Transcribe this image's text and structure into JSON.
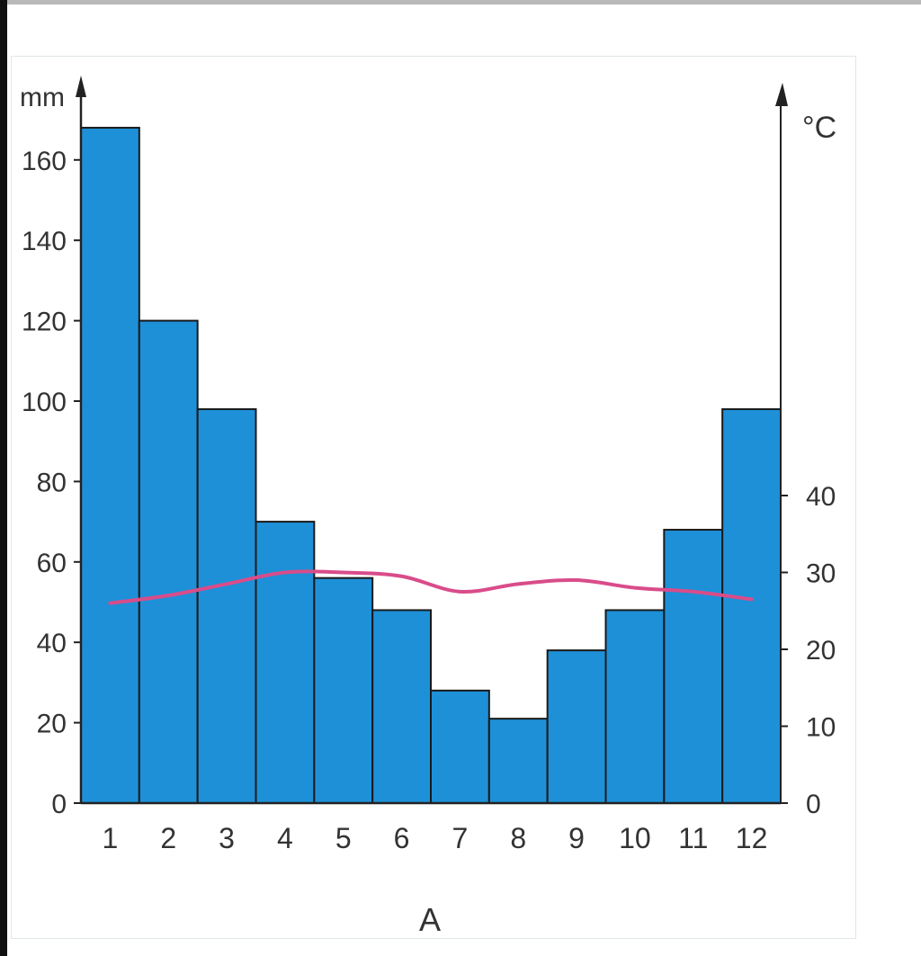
{
  "chart_data": {
    "type": "bar",
    "title": "",
    "xlabel": "A",
    "categories": [
      "1",
      "2",
      "3",
      "4",
      "5",
      "6",
      "7",
      "8",
      "9",
      "10",
      "11",
      "12"
    ],
    "series": [
      {
        "type": "bar",
        "axis": "left",
        "values": [
          168,
          120,
          98,
          70,
          56,
          48,
          28,
          21,
          38,
          48,
          68,
          98
        ]
      },
      {
        "type": "line",
        "axis": "right",
        "values": [
          26,
          27,
          28.5,
          30,
          30,
          29.5,
          27.5,
          28.5,
          29,
          28,
          27.5,
          26.5
        ]
      }
    ],
    "y_left": {
      "label": "mm",
      "ylim": [
        0,
        170
      ],
      "ticks": [
        "0",
        "20",
        "40",
        "60",
        "80",
        "100",
        "120",
        "140",
        "160"
      ]
    },
    "y_right": {
      "label": "°C",
      "ylim": [
        0,
        88.5
      ],
      "ticks": [
        "0",
        "10",
        "20",
        "30",
        "40"
      ]
    },
    "colors": {
      "bar": "#1e90d8",
      "bar_edge": "#1a1a1a",
      "line": "#d94c8a",
      "axis": "#222222"
    },
    "grid": false,
    "legend": "none"
  }
}
